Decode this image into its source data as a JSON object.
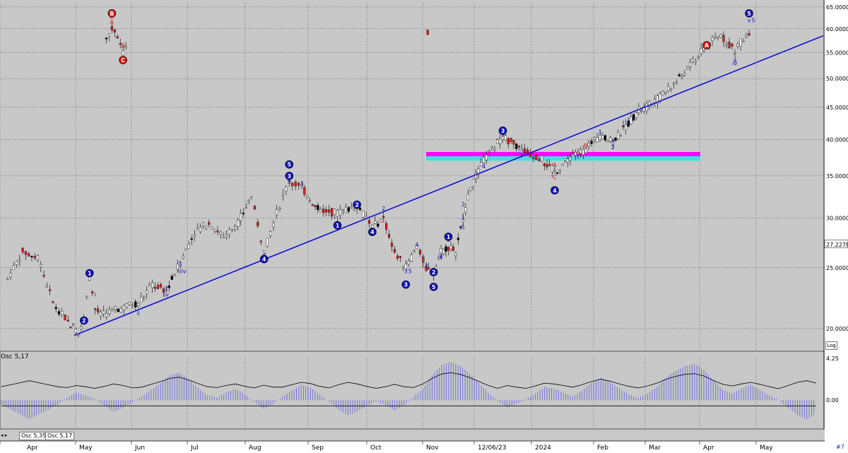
{
  "colors": {
    "background": "#c8c8c8",
    "up_bar": "#ffffff",
    "down_bar": "#e02020",
    "neutral_bar": "#000000",
    "wave_blue": "#1010c0",
    "wave_red": "#e01010",
    "trendline": "#1010d0",
    "zone_magenta": "#ff00ff",
    "zone_cyan": "#40e0e0",
    "osc_bars": "#6060e0"
  },
  "osc": {
    "title": "Osc 5,17",
    "tabs": [
      "Osc 5,35",
      "Osc 5,17"
    ],
    "y_labels": [
      "4.25",
      "0.00"
    ]
  },
  "price_axis": {
    "labels": [
      "65.0000",
      "60.0000",
      "55.0000",
      "50.0000",
      "45.0000",
      "40.0000",
      "35.0000",
      "30.0000",
      "25.0000",
      "20.0000"
    ],
    "current_price": "27.2278",
    "scale_button": "Log"
  },
  "months": [
    "Apr",
    "May",
    "Jun",
    "Jul",
    "Aug",
    "Sep",
    "Oct",
    "Nov",
    "12/06/23",
    "2024",
    "Feb",
    "Mar",
    "Apr",
    "May"
  ],
  "page_indicator": "#7",
  "chart_data": {
    "type": "candlestick",
    "y_scale": "log",
    "ylim": [
      18.5,
      66
    ],
    "x_axis": [
      "Apr",
      "May",
      "Jun",
      "Jul",
      "Aug",
      "Sep",
      "Oct",
      "Nov",
      "12/06/23",
      "2024",
      "Feb",
      "Mar",
      "Apr",
      "May"
    ],
    "price_path": [
      [
        "Apr",
        24.0
      ],
      [
        "Apr",
        26.5
      ],
      [
        "Apr",
        26.0
      ],
      [
        "Apr",
        22.0
      ],
      [
        "Apr",
        20.5
      ],
      [
        "May",
        19.8
      ],
      [
        "May",
        20.6
      ],
      [
        "May",
        24.2
      ],
      [
        "May",
        21.5
      ],
      [
        "May",
        21.0
      ],
      [
        "Jun",
        22.0
      ],
      [
        "Jun",
        23.5
      ],
      [
        "Jun",
        23.0
      ],
      [
        "Jun",
        25.5
      ],
      [
        "Jul",
        28.5
      ],
      [
        "Jul",
        29.5
      ],
      [
        "Jul",
        28.0
      ],
      [
        "Jul",
        29.5
      ],
      [
        "Aug",
        32.5
      ],
      [
        "Aug",
        26.5
      ],
      [
        "Aug",
        30.5
      ],
      [
        "Aug",
        34.5
      ],
      [
        "Aug",
        33.5
      ],
      [
        "Sep",
        31.0
      ],
      [
        "Sep",
        30.5
      ],
      [
        "Sep",
        31.5
      ],
      [
        "Oct",
        29.0
      ],
      [
        "Oct",
        30.0
      ],
      [
        "Oct",
        26.5
      ],
      [
        "Oct",
        25.0
      ],
      [
        "Oct",
        27.0
      ],
      [
        "Nov",
        25.0
      ],
      [
        "Nov",
        24.5
      ],
      [
        "Nov",
        26.5
      ],
      [
        "Nov",
        27.0
      ],
      [
        "Nov",
        26.5
      ],
      [
        "Nov",
        30.0
      ],
      [
        "Nov",
        33.5
      ],
      [
        "12/06/23",
        37.0
      ],
      [
        "12/06/23",
        40.5
      ],
      [
        "12/06/23",
        38.5
      ],
      [
        "2024",
        37.5
      ],
      [
        "2024",
        35.5
      ],
      [
        "2024",
        37.5
      ],
      [
        "2024",
        38.5
      ],
      [
        "Feb",
        40.5
      ],
      [
        "Feb",
        39.5
      ],
      [
        "Feb",
        42.0
      ],
      [
        "Feb",
        44.5
      ],
      [
        "Mar",
        45.5
      ],
      [
        "Mar",
        47.5
      ],
      [
        "Mar",
        50.0
      ],
      [
        "Mar",
        53.0
      ],
      [
        "Apr",
        56.5
      ],
      [
        "Apr",
        58.5
      ],
      [
        "Apr",
        55.5
      ],
      [
        "Apr",
        59.5
      ],
      [
        "May",
        58.5
      ],
      [
        "May",
        60.0
      ],
      [
        "May",
        58.5
      ],
      [
        "May",
        55.0
      ],
      [
        "May",
        57.5
      ]
    ],
    "trendline": [
      [
        "May",
        19.5
      ],
      [
        "May",
        58.5
      ]
    ],
    "zones": [
      {
        "color": "magenta",
        "y_range": [
          37.6,
          38.2
        ]
      },
      {
        "color": "cyan",
        "y_range": [
          37.0,
          37.6
        ]
      }
    ],
    "circled_labels": [
      {
        "label": "1",
        "color": "blue",
        "date": "May",
        "price": 24.5
      },
      {
        "label": "2",
        "color": "blue",
        "date": "May",
        "price": 20.6
      },
      {
        "label": "3",
        "color": "blue",
        "date": "Aug",
        "price": 35.0
      },
      {
        "label": "4",
        "color": "blue",
        "date": "Aug",
        "price": 25.8
      },
      {
        "label": "5",
        "color": "blue",
        "date": "Aug",
        "price": 36.5
      },
      {
        "label": "1",
        "color": "blue",
        "date": "Sep",
        "price": 29.2
      },
      {
        "label": "2",
        "color": "blue",
        "date": "Sep",
        "price": 31.5
      },
      {
        "label": "3",
        "color": "blue",
        "date": "Oct",
        "price": 23.5
      },
      {
        "label": "4",
        "color": "blue",
        "date": "Oct",
        "price": 28.5
      },
      {
        "label": "5",
        "color": "blue",
        "date": "Nov",
        "price": 23.3
      },
      {
        "label": "1",
        "color": "blue",
        "date": "Nov",
        "price": 28.0
      },
      {
        "label": "2",
        "color": "blue",
        "date": "Nov",
        "price": 24.6
      },
      {
        "label": "3",
        "color": "blue",
        "date": "12/06/23",
        "price": 41.3
      },
      {
        "label": "4",
        "color": "blue",
        "date": "2024",
        "price": 33.2
      },
      {
        "label": "5",
        "color": "blue",
        "date": "Apr",
        "price": 63.5
      },
      {
        "label": "A",
        "color": "red",
        "date": "Apr",
        "price": 56.5
      },
      {
        "label": "B",
        "color": "red",
        "date": "May",
        "price": 63.5
      },
      {
        "label": "C",
        "color": "red",
        "date": "May",
        "price": 53.5
      }
    ],
    "wave_labels": [
      {
        "label": "i",
        "color": "blue",
        "date": "May",
        "price": 22.5
      },
      {
        "label": "ii",
        "color": "blue",
        "date": "Jun",
        "price": 21.0
      },
      {
        "label": "iii",
        "color": "blue",
        "date": "Jun",
        "price": 24.5
      },
      {
        "label": "iv",
        "color": "blue",
        "date": "Jun",
        "price": 22.5
      },
      {
        "label": "1",
        "color": "blue",
        "date": "Jun",
        "price": 25.2
      },
      {
        "label": "v",
        "color": "blue",
        "date": "Jun",
        "price": 24.5
      },
      {
        "label": "2",
        "color": "blue",
        "date": "Jun",
        "price": 23.0
      },
      {
        "label": "3",
        "color": "blue",
        "date": "Aug",
        "price": 33.8
      },
      {
        "label": "4",
        "color": "blue",
        "date": "Aug",
        "price": 26.0
      },
      {
        "label": "5",
        "color": "blue",
        "date": "Aug",
        "price": 34.0
      },
      {
        "label": "1",
        "color": "blue",
        "date": "Oct",
        "price": 28.5
      },
      {
        "label": "2",
        "color": "blue",
        "date": "Oct",
        "price": 30.8
      },
      {
        "label": "1",
        "color": "red",
        "date": "Oct",
        "price": 29.5
      },
      {
        "label": "4",
        "color": "blue",
        "date": "Oct",
        "price": 27.0
      },
      {
        "label": "3",
        "color": "blue",
        "date": "Oct",
        "price": 24.5
      },
      {
        "label": "5",
        "color": "blue",
        "date": "Oct",
        "price": 24.5
      },
      {
        "label": "1",
        "color": "blue",
        "date": "Nov",
        "price": 26.0
      },
      {
        "label": "2",
        "color": "blue",
        "date": "Nov",
        "price": 25.0
      },
      {
        "label": "3",
        "color": "blue",
        "date": "Nov",
        "price": 27.5
      },
      {
        "label": "4",
        "color": "blue",
        "date": "Nov",
        "price": 25.8
      },
      {
        "label": "5",
        "color": "blue",
        "date": "Nov",
        "price": 28.8
      },
      {
        "label": "1",
        "color": "blue",
        "date": "Nov",
        "price": 29.8
      },
      {
        "label": "2",
        "color": "blue",
        "date": "Nov",
        "price": 31.3
      },
      {
        "label": "3",
        "color": "blue",
        "date": "12/06/23",
        "price": 38.0
      },
      {
        "label": "4",
        "color": "blue",
        "date": "12/06/23",
        "price": 36.0
      },
      {
        "label": "5",
        "color": "blue",
        "date": "12/06/23",
        "price": 40.5
      },
      {
        "label": "A",
        "color": "red",
        "date": "2024",
        "price": 36.2
      },
      {
        "label": "B",
        "color": "red",
        "date": "2024",
        "price": 38.8
      },
      {
        "label": "C",
        "color": "red",
        "date": "2024",
        "price": 34.6
      },
      {
        "label": "1",
        "color": "blue",
        "date": "Feb",
        "price": 40.8
      },
      {
        "label": "2",
        "color": "blue",
        "date": "Feb",
        "price": 38.6
      },
      {
        "label": "i",
        "color": "blue",
        "date": "Feb",
        "price": 42.5
      },
      {
        "label": "ii",
        "color": "blue",
        "date": "Feb",
        "price": 39.4
      },
      {
        "label": "3",
        "color": "blue",
        "date": "Apr",
        "price": 63.0
      },
      {
        "label": "v",
        "color": "blue",
        "date": "Apr",
        "price": 61.5
      },
      {
        "label": "iv",
        "color": "blue",
        "date": "Apr",
        "price": 52.5
      },
      {
        "label": "5",
        "color": "blue",
        "date": "Apr",
        "price": 61.5
      },
      {
        "label": "4",
        "color": "blue",
        "date": "Apr",
        "price": 53.0
      },
      {
        "label": "A",
        "color": "red",
        "date": "May",
        "price": 61.0
      },
      {
        "label": "B",
        "color": "red",
        "date": "May",
        "price": 56.0
      },
      {
        "label": "C",
        "color": "red",
        "date": "May",
        "price": 62.2
      }
    ],
    "oscillator": {
      "name": "Osc 5,17",
      "zero": 0.0,
      "upper_tick": 4.25,
      "values": [
        -0.5,
        -1,
        -1.5,
        -2,
        -1.5,
        -1,
        -0.5,
        0.3,
        0.8,
        0.5,
        0.1,
        -0.6,
        -1.2,
        -0.8,
        -0.2,
        0.4,
        1.1,
        1.8,
        2.6,
        2.9,
        2.2,
        1.3,
        0.5,
        0.3,
        0.8,
        1.2,
        0.6,
        -0.2,
        -0.9,
        -0.4,
        0.4,
        1.0,
        1.6,
        1.3,
        0.6,
        -0.2,
        -1.0,
        -1.6,
        -1.2,
        -0.6,
        -0.1,
        -0.5,
        -1.1,
        -0.5,
        0.3,
        1.2,
        2.6,
        3.7,
        4.0,
        3.6,
        2.8,
        1.8,
        0.8,
        -0.1,
        -0.8,
        -0.4,
        0.1,
        0.7,
        1.4,
        1.2,
        0.8,
        0.4,
        1.0,
        1.8,
        2.4,
        1.9,
        1.2,
        0.6,
        0.2,
        0.7,
        1.4,
        2.4,
        3.1,
        3.6,
        3.8,
        3.2,
        2.1,
        1.1,
        0.7,
        1.2,
        1.6,
        1.1,
        0.5,
        0.0,
        -0.8,
        -1.6,
        -2.0,
        -1.4
      ]
    }
  }
}
